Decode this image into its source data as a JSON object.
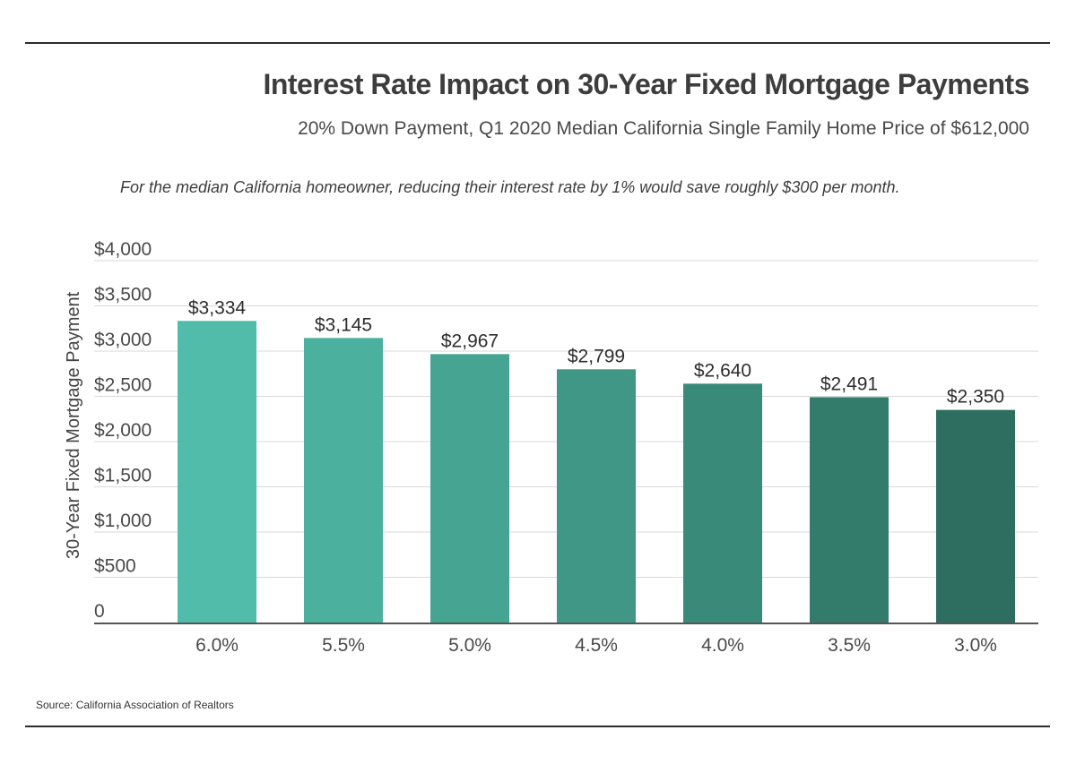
{
  "header": {
    "title": "Interest Rate Impact on 30-Year Fixed Mortgage Payments",
    "subtitle": "20% Down Payment, Q1 2020 Median California Single Family Home Price of $612,000",
    "note": "For the median California homeowner, reducing their interest rate by 1% would save  roughly $300 per month."
  },
  "footer": {
    "source": "Source:  California Association of Realtors"
  },
  "chart_data": {
    "type": "bar",
    "categories": [
      "6.0%",
      "5.5%",
      "5.0%",
      "4.5%",
      "4.0%",
      "3.5%",
      "3.0%"
    ],
    "values": [
      3334,
      3145,
      2967,
      2799,
      2640,
      2491,
      2350
    ],
    "data_labels": [
      "$3,334",
      "$3,145",
      "$2,967",
      "$2,799",
      "$2,640",
      "$2,491",
      "$2,350"
    ],
    "bar_colors": [
      "#50bca9",
      "#4bb09d",
      "#46a592",
      "#409786",
      "#3a8a79",
      "#337c6c",
      "#2e6e60"
    ],
    "ylabel": "30-Year Fixed Mortgage Payment",
    "xlabel": "",
    "ylim": [
      0,
      4000
    ],
    "yticks": [
      0,
      500,
      1000,
      1500,
      2000,
      2500,
      3000,
      3500,
      4000
    ],
    "ytick_labels": [
      "0",
      "$500",
      "$1,000",
      "$1,500",
      "$2,000",
      "$2,500",
      "$3,000",
      "$3,500",
      "$4,000"
    ],
    "grid": true,
    "gridline_color": "#d9d9d9",
    "axis_color": "#555555"
  }
}
